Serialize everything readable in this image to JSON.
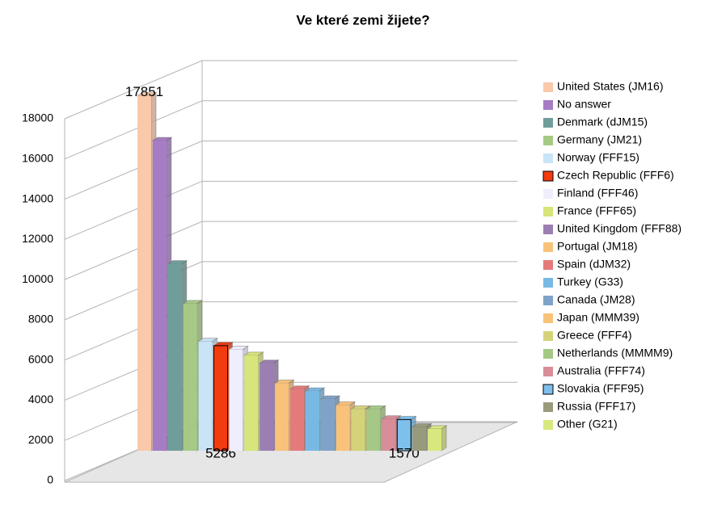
{
  "chart_data": {
    "type": "bar3d",
    "title": "Ve které zemi žijete?",
    "categories": [
      "United States (JM16)",
      "No answer",
      "Denmark (dJM15)",
      "Germany (JM21)",
      "Norway (FFF15)",
      "Czech Republic (FFF6)",
      "Finland (FFF46)",
      "France (FFF65)",
      "United Kingdom (FFF88)",
      "Portugal (JM18)",
      "Spain (dJM32)",
      "Turkey (G33)",
      "Canada (JM28)",
      "Japan (MMM39)",
      "Greece (FFF4)",
      "Netherlands (MMMM9)",
      "Australia (FFF74)",
      "Slovakia (FFF95)",
      "Russia (FFF17)",
      "Other (G21)"
    ],
    "values": [
      17851,
      15600,
      9400,
      7400,
      5500,
      5286,
      5100,
      4800,
      4400,
      3400,
      3100,
      3000,
      2600,
      2300,
      2100,
      2100,
      1600,
      1570,
      1200,
      1100
    ],
    "value_labels": [
      "17851",
      null,
      null,
      null,
      null,
      "5286",
      null,
      null,
      null,
      null,
      null,
      null,
      null,
      null,
      null,
      null,
      null,
      "1570",
      null,
      null
    ],
    "colors": [
      "#f9c9a9",
      "#a67cc4",
      "#6f9e9a",
      "#a6ca85",
      "#c9e3f7",
      "#f23b0f",
      "#eeeefc",
      "#d7e57a",
      "#9b7fb3",
      "#f8c27a",
      "#e57a7a",
      "#78b9e4",
      "#7fa3c8",
      "#f8c27a",
      "#d4d37a",
      "#a6c886",
      "#d88d99",
      "#7ec0ec",
      "#999a7c",
      "#d8e87e"
    ],
    "ylim": [
      0,
      18000
    ],
    "yticks": [
      0,
      2000,
      4000,
      6000,
      8000,
      10000,
      12000,
      14000,
      16000,
      18000
    ],
    "grid": true,
    "legend": "right"
  }
}
